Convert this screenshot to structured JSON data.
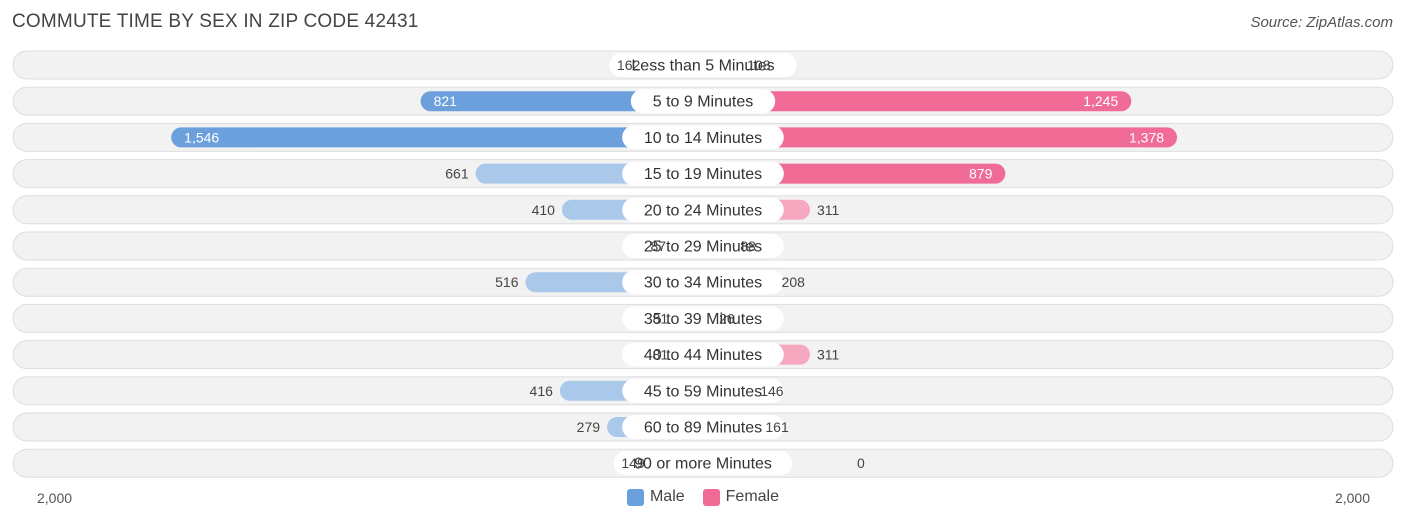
{
  "title": "COMMUTE TIME BY SEX IN ZIP CODE 42431",
  "source": "Source: ZipAtlas.com",
  "colors": {
    "male": "#6ca0dc",
    "male_light": "#a9c8ea",
    "female": "#f06c96",
    "female_light": "#f6a8c0"
  },
  "chart_data": {
    "type": "bar",
    "orientation": "horizontal-diverging",
    "categories": [
      "Less than 5 Minutes",
      "5 to 9 Minutes",
      "10 to 14 Minutes",
      "15 to 19 Minutes",
      "20 to 24 Minutes",
      "25 to 29 Minutes",
      "30 to 34 Minutes",
      "35 to 39 Minutes",
      "40 to 44 Minutes",
      "45 to 59 Minutes",
      "60 to 89 Minutes",
      "90 or more Minutes"
    ],
    "series": [
      {
        "name": "Male",
        "values": [
          162,
          821,
          1546,
          661,
          410,
          87,
          516,
          81,
          81,
          416,
          279,
          149
        ],
        "labels": [
          "162",
          "821",
          "1,546",
          "661",
          "410",
          "87",
          "516",
          "81",
          "81",
          "416",
          "279",
          "149"
        ]
      },
      {
        "name": "Female",
        "values": [
          108,
          1245,
          1378,
          879,
          311,
          88,
          208,
          26,
          311,
          146,
          161,
          0
        ],
        "labels": [
          "108",
          "1,245",
          "1,378",
          "879",
          "311",
          "88",
          "208",
          "26",
          "311",
          "146",
          "161",
          "0"
        ]
      }
    ],
    "axis_min_label": "2,000",
    "axis_max_label": "2,000",
    "xlim": [
      -2000,
      2000
    ],
    "legend_placement": "bottom-center",
    "grid": false
  }
}
